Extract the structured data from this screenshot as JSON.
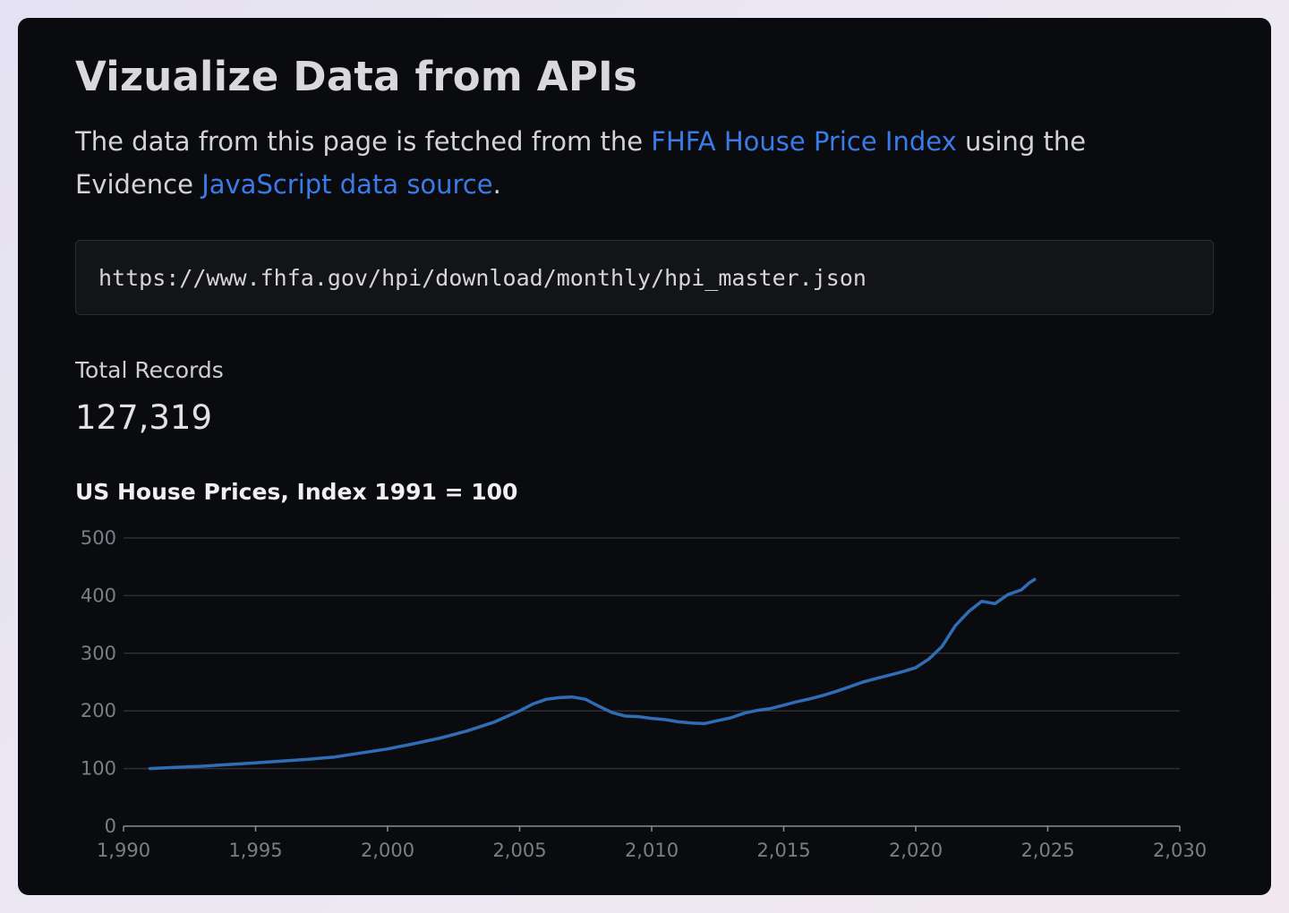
{
  "page": {
    "title": "Vizualize Data from APIs",
    "intro": {
      "part1": "The data from this page is fetched from the ",
      "link1": "FHFA House Price Index",
      "part2": " using the Evidence ",
      "link2": "JavaScript data source",
      "part3": "."
    },
    "code": "https://www.fhfa.gov/hpi/download/monthly/hpi_master.json",
    "metric": {
      "label": "Total Records",
      "value": "127,319"
    }
  },
  "colors": {
    "line": "#2f6db5",
    "link": "#3a7be8",
    "grid": "#2e2f35",
    "axis": "#8a8b92"
  },
  "chart_data": {
    "type": "line",
    "title": "US House Prices, Index 1991 = 100",
    "xlabel": "",
    "ylabel": "",
    "xlim": [
      1990,
      2030
    ],
    "ylim": [
      0,
      500
    ],
    "x_ticks": [
      1990,
      1995,
      2000,
      2005,
      2010,
      2015,
      2020,
      2025,
      2030
    ],
    "x_tick_labels": [
      "1,990",
      "1,995",
      "2,000",
      "2,005",
      "2,010",
      "2,015",
      "2,020",
      "2,025",
      "2,030"
    ],
    "y_ticks": [
      0,
      100,
      200,
      300,
      400,
      500
    ],
    "y_tick_labels": [
      "0",
      "100",
      "200",
      "300",
      "400",
      "500"
    ],
    "grid": true,
    "legend": "none",
    "series": [
      {
        "x": [
          1991.0,
          1992.0,
          1993.0,
          1994.0,
          1995.0,
          1996.0,
          1997.0,
          1998.0,
          1999.0,
          2000.0,
          2001.0,
          2002.0,
          2003.0,
          2004.0,
          2004.5,
          2005.0,
          2005.5,
          2006.0,
          2006.5,
          2007.0,
          2007.5,
          2008.0,
          2008.5,
          2009.0,
          2009.5,
          2010.0,
          2010.5,
          2011.0,
          2011.5,
          2012.0,
          2012.5,
          2013.0,
          2013.5,
          2014.0,
          2014.5,
          2015.0,
          2015.5,
          2016.0,
          2016.5,
          2017.0,
          2017.5,
          2018.0,
          2018.5,
          2019.0,
          2019.5,
          2020.0,
          2020.5,
          2021.0,
          2021.5,
          2022.0,
          2022.5,
          2023.0,
          2023.5,
          2024.0,
          2024.3,
          2024.5
        ],
        "y": [
          100,
          102,
          104,
          107,
          110,
          113,
          116,
          120,
          127,
          134,
          143,
          153,
          165,
          180,
          190,
          200,
          212,
          220,
          223,
          224,
          220,
          208,
          197,
          191,
          190,
          187,
          185,
          181,
          179,
          178,
          183,
          188,
          196,
          201,
          204,
          210,
          216,
          221,
          227,
          234,
          242,
          250,
          256,
          262,
          268,
          275,
          290,
          312,
          348,
          372,
          390,
          386,
          402,
          410,
          422,
          428
        ]
      }
    ]
  }
}
